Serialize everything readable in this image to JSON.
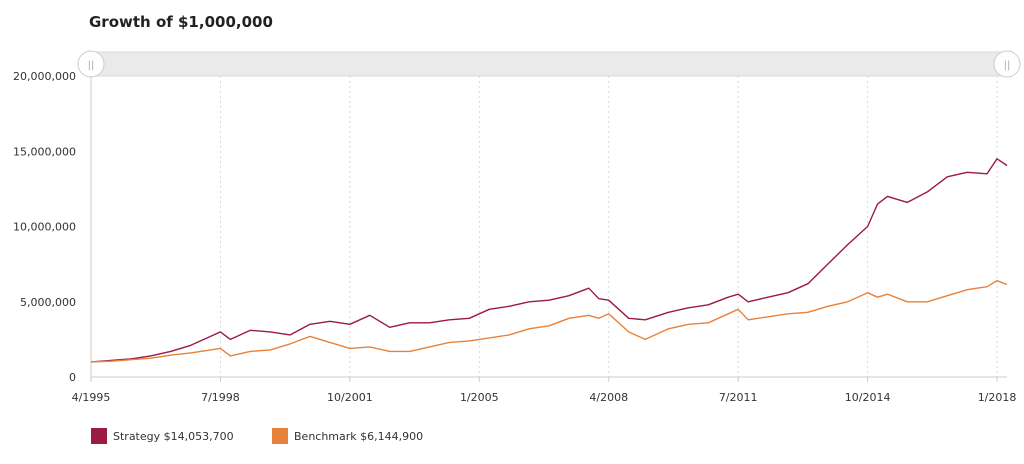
{
  "chart_data": {
    "type": "line",
    "title": "Growth of $1,000,000",
    "xlabel": "",
    "ylabel": "",
    "ylim": [
      0,
      20000000
    ],
    "y_ticks": [
      "0",
      "5,000,000",
      "10,000,000",
      "15,000,000",
      "20,000,000"
    ],
    "x_range": [
      "4/1995",
      "4/2018"
    ],
    "x_ticks": [
      "4/1995",
      "7/1998",
      "10/2001",
      "1/2005",
      "4/2008",
      "7/2011",
      "10/2014",
      "1/2018"
    ],
    "grid": "vertical dashed",
    "legend_position": "bottom-left",
    "series": [
      {
        "name": "Strategy",
        "legend_label": "Strategy $14,053,700",
        "color": "#9b1b42",
        "points": [
          [
            "4/1995",
            1000000
          ],
          [
            "10/1995",
            1100000
          ],
          [
            "4/1996",
            1200000
          ],
          [
            "10/1996",
            1400000
          ],
          [
            "4/1997",
            1700000
          ],
          [
            "10/1997",
            2100000
          ],
          [
            "4/1998",
            2700000
          ],
          [
            "7/1998",
            3000000
          ],
          [
            "10/1998",
            2500000
          ],
          [
            "4/1999",
            3100000
          ],
          [
            "10/1999",
            3000000
          ],
          [
            "4/2000",
            2800000
          ],
          [
            "10/2000",
            3500000
          ],
          [
            "4/2001",
            3700000
          ],
          [
            "10/2001",
            3500000
          ],
          [
            "4/2002",
            4100000
          ],
          [
            "10/2002",
            3300000
          ],
          [
            "4/2003",
            3600000
          ],
          [
            "10/2003",
            3600000
          ],
          [
            "4/2004",
            3800000
          ],
          [
            "10/2004",
            3900000
          ],
          [
            "4/2005",
            4500000
          ],
          [
            "10/2005",
            4700000
          ],
          [
            "4/2006",
            5000000
          ],
          [
            "10/2006",
            5100000
          ],
          [
            "4/2007",
            5400000
          ],
          [
            "10/2007",
            5900000
          ],
          [
            "1/2008",
            5200000
          ],
          [
            "4/2008",
            5100000
          ],
          [
            "10/2008",
            3900000
          ],
          [
            "3/2009",
            3800000
          ],
          [
            "10/2009",
            4300000
          ],
          [
            "4/2010",
            4600000
          ],
          [
            "10/2010",
            4800000
          ],
          [
            "4/2011",
            5300000
          ],
          [
            "7/2011",
            5500000
          ],
          [
            "10/2011",
            5000000
          ],
          [
            "4/2012",
            5300000
          ],
          [
            "10/2012",
            5600000
          ],
          [
            "4/2013",
            6200000
          ],
          [
            "10/2013",
            7500000
          ],
          [
            "4/2014",
            8800000
          ],
          [
            "10/2014",
            10000000
          ],
          [
            "1/2015",
            11500000
          ],
          [
            "4/2015",
            12000000
          ],
          [
            "10/2015",
            11600000
          ],
          [
            "4/2016",
            12300000
          ],
          [
            "10/2016",
            13300000
          ],
          [
            "4/2017",
            13600000
          ],
          [
            "10/2017",
            13500000
          ],
          [
            "1/2018",
            14500000
          ],
          [
            "4/2018",
            14053700
          ]
        ]
      },
      {
        "name": "Benchmark",
        "legend_label": "Benchmark $6,144,900",
        "color": "#e8823a",
        "points": [
          [
            "4/1995",
            1000000
          ],
          [
            "10/1995",
            1050000
          ],
          [
            "4/1996",
            1150000
          ],
          [
            "10/1996",
            1250000
          ],
          [
            "4/1997",
            1450000
          ],
          [
            "10/1997",
            1600000
          ],
          [
            "4/1998",
            1800000
          ],
          [
            "7/1998",
            1900000
          ],
          [
            "10/1998",
            1400000
          ],
          [
            "4/1999",
            1700000
          ],
          [
            "10/1999",
            1800000
          ],
          [
            "4/2000",
            2200000
          ],
          [
            "10/2000",
            2700000
          ],
          [
            "4/2001",
            2300000
          ],
          [
            "10/2001",
            1900000
          ],
          [
            "4/2002",
            2000000
          ],
          [
            "10/2002",
            1700000
          ],
          [
            "4/2003",
            1700000
          ],
          [
            "10/2003",
            2000000
          ],
          [
            "4/2004",
            2300000
          ],
          [
            "10/2004",
            2400000
          ],
          [
            "4/2005",
            2600000
          ],
          [
            "10/2005",
            2800000
          ],
          [
            "4/2006",
            3200000
          ],
          [
            "10/2006",
            3400000
          ],
          [
            "4/2007",
            3900000
          ],
          [
            "10/2007",
            4100000
          ],
          [
            "1/2008",
            3900000
          ],
          [
            "4/2008",
            4200000
          ],
          [
            "10/2008",
            3000000
          ],
          [
            "3/2009",
            2500000
          ],
          [
            "10/2009",
            3200000
          ],
          [
            "4/2010",
            3500000
          ],
          [
            "10/2010",
            3600000
          ],
          [
            "4/2011",
            4200000
          ],
          [
            "7/2011",
            4500000
          ],
          [
            "10/2011",
            3800000
          ],
          [
            "4/2012",
            4000000
          ],
          [
            "10/2012",
            4200000
          ],
          [
            "4/2013",
            4300000
          ],
          [
            "10/2013",
            4700000
          ],
          [
            "4/2014",
            5000000
          ],
          [
            "10/2014",
            5600000
          ],
          [
            "1/2015",
            5300000
          ],
          [
            "4/2015",
            5500000
          ],
          [
            "10/2015",
            5000000
          ],
          [
            "4/2016",
            5000000
          ],
          [
            "10/2016",
            5400000
          ],
          [
            "4/2017",
            5800000
          ],
          [
            "10/2017",
            6000000
          ],
          [
            "1/2018",
            6400000
          ],
          [
            "4/2018",
            6144900
          ]
        ]
      }
    ]
  },
  "navigator": {
    "handle_glyph": "||"
  }
}
